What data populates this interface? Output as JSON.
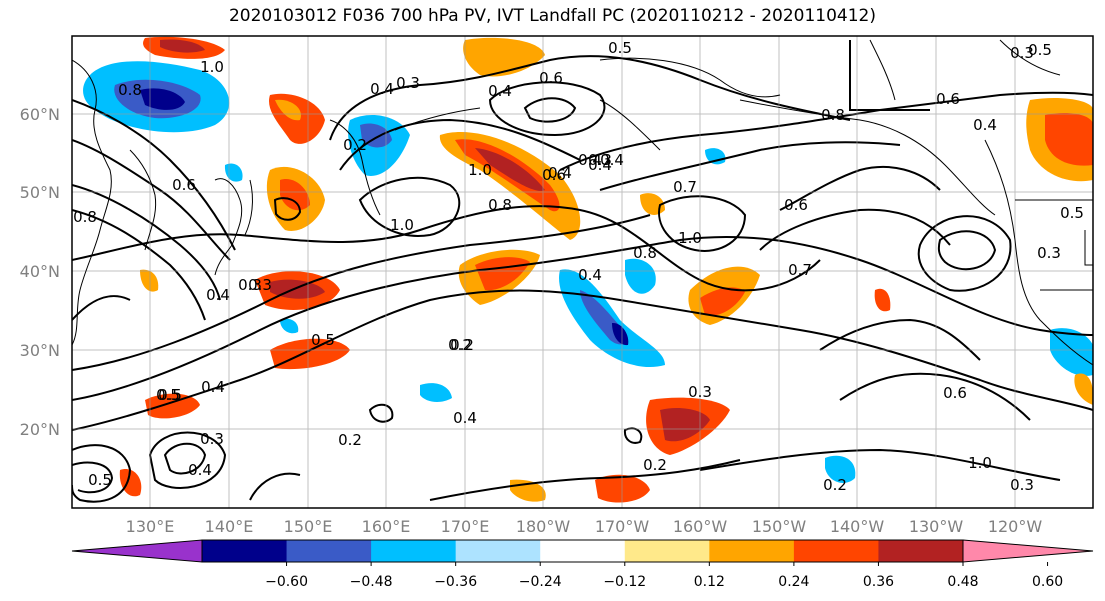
{
  "title": "2020103012 F036 700 hPa PV, IVT Landfall PC (2020110212 - 2020110412)",
  "lat_labels": [
    "60°N",
    "50°N",
    "40°N",
    "30°N",
    "20°N"
  ],
  "lon_labels": [
    "130°E",
    "140°E",
    "150°E",
    "160°E",
    "170°E",
    "180°W",
    "170°W",
    "160°W",
    "150°W",
    "140°W",
    "130°W",
    "120°W"
  ],
  "colorbar": {
    "colors": [
      "#9932CC",
      "#00008B",
      "#3A5BC7",
      "#00BFFF",
      "#ADE3FF",
      "#FFFFFF",
      "#FFE98A",
      "#FFA500",
      "#FF4500",
      "#B22222",
      "#FF88AA"
    ],
    "tick_labels": [
      "−0.60",
      "−0.48",
      "−0.36",
      "−0.24",
      "−0.12",
      "0.12",
      "0.24",
      "0.36",
      "0.48",
      "0.60"
    ]
  },
  "contour_labels": [
    "1.0",
    "0.8",
    "0.6",
    "0.3",
    "0.4",
    "0.5",
    "0.6",
    "0.4",
    "0.3",
    "0.5",
    "0.6",
    "0.4",
    "0.7",
    "1.0",
    "0.8",
    "0.6",
    "1.0",
    "0.8",
    "1.0",
    "0.8",
    "0.6",
    "0.4",
    "0.4",
    "0.8",
    "0.5",
    "0.3",
    "0.4",
    "0.3",
    "0.5",
    "0.2",
    "0.5",
    "0.4",
    "0.4",
    "0.2",
    "0.4",
    "0.3",
    "0.5",
    "0.6",
    "0.2",
    "0.3",
    "0.7",
    "0.2",
    "0.3",
    "1.0",
    "0.2",
    "0.4",
    "0.3",
    "0.5",
    "0.4",
    "0.4",
    "0.3",
    "0.2"
  ]
}
